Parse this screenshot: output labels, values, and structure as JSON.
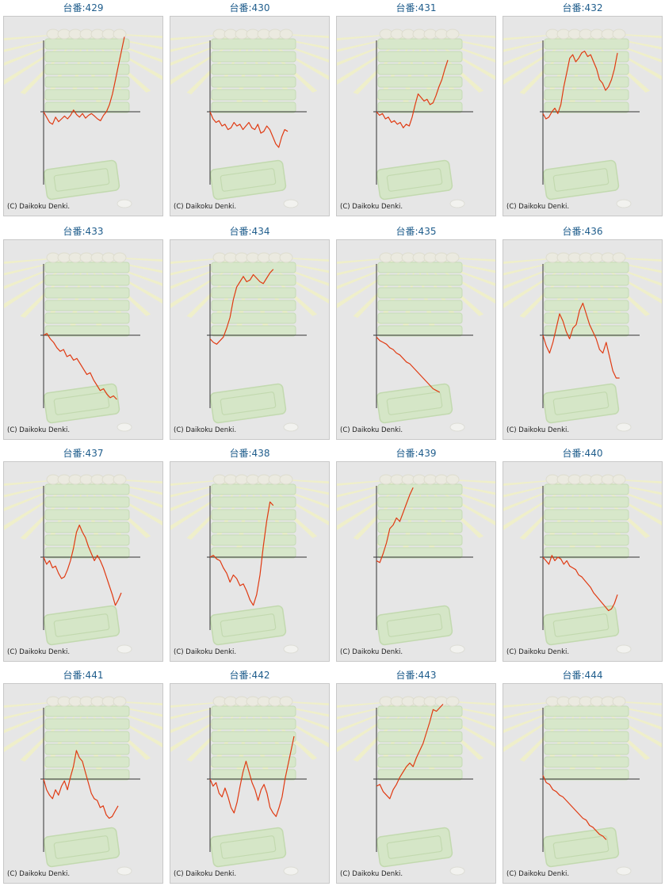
{
  "credit": "(C) Daikoku Denki.",
  "colors": {
    "line": "#e03a12",
    "axis": "#333333",
    "title": "#1f5d8c",
    "panel": "#e6e6e6"
  },
  "chart_data": [
    {
      "type": "line",
      "title": "台番:429",
      "ylim": [
        -2,
        2
      ],
      "values": [
        0,
        -0.15,
        -0.3,
        -0.35,
        -0.15,
        -0.28,
        -0.2,
        -0.12,
        -0.2,
        -0.1,
        0.05,
        -0.08,
        -0.15,
        -0.05,
        -0.18,
        -0.1,
        -0.05,
        -0.12,
        -0.2,
        -0.25,
        -0.1,
        0,
        0.2,
        0.5,
        0.9,
        1.3,
        1.7,
        2.1
      ]
    },
    {
      "type": "line",
      "title": "台番:430",
      "ylim": [
        -2,
        2
      ],
      "values": [
        0,
        -0.2,
        -0.3,
        -0.25,
        -0.4,
        -0.35,
        -0.5,
        -0.45,
        -0.3,
        -0.4,
        -0.35,
        -0.5,
        -0.4,
        -0.3,
        -0.45,
        -0.5,
        -0.35,
        -0.6,
        -0.55,
        -0.4,
        -0.5,
        -0.7,
        -0.9,
        -1.0,
        -0.7,
        -0.5,
        -0.55
      ]
    },
    {
      "type": "line",
      "title": "台番:431",
      "ylim": [
        -2,
        2
      ],
      "values": [
        0,
        -0.1,
        -0.05,
        -0.2,
        -0.15,
        -0.3,
        -0.25,
        -0.35,
        -0.3,
        -0.45,
        -0.35,
        -0.4,
        -0.15,
        0.2,
        0.5,
        0.4,
        0.3,
        0.35,
        0.2,
        0.25,
        0.45,
        0.7,
        0.9,
        1.2,
        1.45
      ]
    },
    {
      "type": "line",
      "title": "台番:432",
      "ylim": [
        -2,
        2
      ],
      "values": [
        -0.05,
        -0.2,
        -0.15,
        0,
        0.1,
        -0.05,
        0.2,
        0.7,
        1.1,
        1.5,
        1.6,
        1.4,
        1.5,
        1.65,
        1.7,
        1.55,
        1.6,
        1.4,
        1.2,
        0.9,
        0.8,
        0.6,
        0.7,
        0.9,
        1.2,
        1.65
      ]
    },
    {
      "type": "line",
      "title": "台番:433",
      "ylim": [
        -2,
        2
      ],
      "values": [
        0,
        0.05,
        -0.1,
        -0.2,
        -0.35,
        -0.45,
        -0.4,
        -0.6,
        -0.55,
        -0.7,
        -0.65,
        -0.8,
        -0.95,
        -1.1,
        -1.05,
        -1.25,
        -1.4,
        -1.55,
        -1.5,
        -1.65,
        -1.75,
        -1.7,
        -1.8
      ]
    },
    {
      "type": "line",
      "title": "台番:434",
      "ylim": [
        -2,
        2
      ],
      "values": [
        -0.1,
        -0.2,
        -0.25,
        -0.15,
        -0.05,
        0.2,
        0.5,
        1.0,
        1.35,
        1.5,
        1.65,
        1.5,
        1.55,
        1.7,
        1.6,
        1.5,
        1.45,
        1.6,
        1.75,
        1.85
      ]
    },
    {
      "type": "line",
      "title": "台番:435",
      "ylim": [
        -2,
        2
      ],
      "values": [
        -0.05,
        -0.15,
        -0.2,
        -0.25,
        -0.35,
        -0.4,
        -0.5,
        -0.55,
        -0.65,
        -0.75,
        -0.8,
        -0.9,
        -1.0,
        -1.1,
        -1.2,
        -1.3,
        -1.4,
        -1.5,
        -1.55,
        -1.6
      ]
    },
    {
      "type": "line",
      "title": "台番:436",
      "ylim": [
        -2,
        2
      ],
      "values": [
        0,
        -0.3,
        -0.5,
        -0.2,
        0.2,
        0.6,
        0.4,
        0.1,
        -0.1,
        0.2,
        0.3,
        0.7,
        0.9,
        0.6,
        0.3,
        0.1,
        -0.1,
        -0.4,
        -0.5,
        -0.2,
        -0.6,
        -1.0,
        -1.2,
        -1.2
      ]
    },
    {
      "type": "line",
      "title": "台番:437",
      "ylim": [
        -2,
        2
      ],
      "values": [
        0,
        -0.2,
        -0.1,
        -0.3,
        -0.25,
        -0.45,
        -0.6,
        -0.55,
        -0.35,
        -0.1,
        0.25,
        0.7,
        0.9,
        0.7,
        0.55,
        0.3,
        0.1,
        -0.1,
        0.05,
        -0.1,
        -0.3,
        -0.55,
        -0.8,
        -1.05,
        -1.35,
        -1.2,
        -1.0
      ]
    },
    {
      "type": "line",
      "title": "台番:438",
      "ylim": [
        -2,
        2
      ],
      "values": [
        0,
        0.05,
        -0.05,
        -0.1,
        -0.3,
        -0.45,
        -0.7,
        -0.5,
        -0.6,
        -0.8,
        -0.75,
        -0.95,
        -1.2,
        -1.35,
        -1.05,
        -0.5,
        0.3,
        1.0,
        1.55,
        1.45
      ]
    },
    {
      "type": "line",
      "title": "台番:439",
      "ylim": [
        -2,
        2
      ],
      "values": [
        -0.1,
        -0.15,
        0.1,
        0.4,
        0.8,
        0.9,
        1.1,
        1.0,
        1.25,
        1.5,
        1.75,
        1.95
      ]
    },
    {
      "type": "line",
      "title": "台番:440",
      "ylim": [
        -2,
        2
      ],
      "values": [
        0,
        -0.1,
        -0.2,
        0.05,
        -0.1,
        0,
        -0.05,
        -0.2,
        -0.1,
        -0.25,
        -0.3,
        -0.35,
        -0.5,
        -0.55,
        -0.65,
        -0.75,
        -0.85,
        -1.0,
        -1.1,
        -1.2,
        -1.3,
        -1.4,
        -1.5,
        -1.45,
        -1.3,
        -1.05
      ]
    },
    {
      "type": "line",
      "title": "台番:441",
      "ylim": [
        -2,
        2
      ],
      "values": [
        0,
        -0.3,
        -0.45,
        -0.55,
        -0.3,
        -0.45,
        -0.2,
        -0.05,
        -0.3,
        0.05,
        0.35,
        0.8,
        0.6,
        0.5,
        0.2,
        -0.1,
        -0.4,
        -0.55,
        -0.6,
        -0.8,
        -0.75,
        -1.0,
        -1.1,
        -1.05,
        -0.9,
        -0.75
      ]
    },
    {
      "type": "line",
      "title": "台番:442",
      "ylim": [
        -2,
        2
      ],
      "values": [
        0,
        -0.2,
        -0.1,
        -0.4,
        -0.5,
        -0.25,
        -0.5,
        -0.8,
        -0.95,
        -0.65,
        -0.2,
        0.2,
        0.5,
        0.2,
        -0.1,
        -0.3,
        -0.6,
        -0.3,
        -0.15,
        -0.4,
        -0.8,
        -0.95,
        -1.05,
        -0.8,
        -0.5,
        0,
        0.4,
        0.8,
        1.2
      ]
    },
    {
      "type": "line",
      "title": "台番:443",
      "ylim": [
        -2,
        2
      ],
      "values": [
        -0.2,
        -0.15,
        -0.35,
        -0.45,
        -0.55,
        -0.3,
        -0.15,
        0.05,
        0.2,
        0.35,
        0.45,
        0.35,
        0.6,
        0.8,
        1.0,
        1.3,
        1.6,
        1.95,
        1.9,
        2.0,
        2.1
      ]
    },
    {
      "type": "line",
      "title": "台番:444",
      "ylim": [
        -2,
        2
      ],
      "values": [
        0.1,
        -0.1,
        -0.15,
        -0.3,
        -0.35,
        -0.45,
        -0.5,
        -0.6,
        -0.7,
        -0.8,
        -0.9,
        -1.0,
        -1.1,
        -1.15,
        -1.3,
        -1.35,
        -1.45,
        -1.55,
        -1.6,
        -1.7
      ]
    }
  ]
}
